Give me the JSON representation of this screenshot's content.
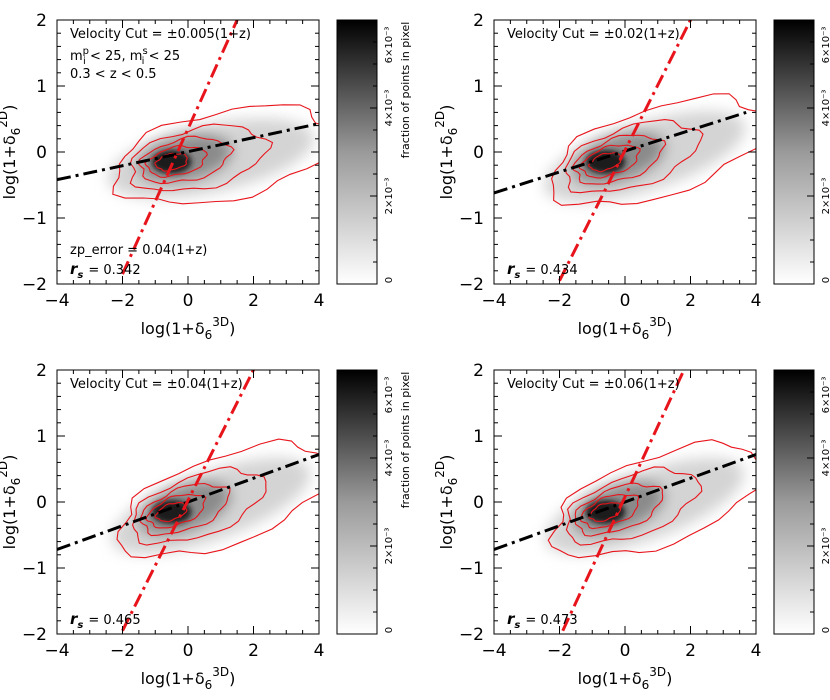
{
  "chart_data": [
    {
      "type": "heatmap",
      "xlabel_main": "log(1+δ",
      "xlabel_sub": "6",
      "xlabel_sup": "3D",
      "xlabel_close": ")",
      "ylabel_main": "log(1+δ",
      "ylabel_sub": "6",
      "ylabel_sup": "2D",
      "ylabel_close": ")",
      "xlim": [
        -4,
        4
      ],
      "ylim": [
        -2,
        2
      ],
      "xticks": [
        "−4",
        "−2",
        "0",
        "2",
        "4"
      ],
      "yticks": [
        "−2",
        "−1",
        "0",
        "1",
        "2"
      ],
      "annotations": [
        {
          "text": "Velocity Cut = ±0.005(1+z)",
          "place": "top-left-1"
        },
        {
          "text": "m",
          "sup": "p",
          "sub": "i",
          "text2": " < 25, m",
          "sup2": "s",
          "sub2": "i",
          "text3": " < 25",
          "place": "top-left-2",
          "kind": "mag"
        },
        {
          "text": "0.3 < z < 0.5",
          "place": "top-left-3"
        },
        {
          "text": "zp_error = 0.04(1+z)",
          "place": "bottom-left-2"
        }
      ],
      "rs_label": "r",
      "rs_sub": "s",
      "rs_value": "= 0.342",
      "fit_black": [
        [
          -4,
          -0.42
        ],
        [
          4,
          0.43
        ]
      ],
      "fit_red": [
        [
          -2.0,
          -1.85
        ],
        [
          1.5,
          2.0
        ]
      ],
      "density_peak": [
        -0.5,
        -0.15
      ],
      "colorbar": {
        "label": "fraction of points in pixel",
        "ticks": [
          "0",
          "2×10⁻³",
          "4×10⁻³",
          "6×10⁻³"
        ],
        "range": [
          0,
          0.006
        ]
      }
    },
    {
      "type": "heatmap",
      "xlabel_main": "log(1+δ",
      "xlabel_sub": "6",
      "xlabel_sup": "3D",
      "xlabel_close": ")",
      "ylabel_main": "log(1+δ",
      "ylabel_sub": "6",
      "ylabel_sup": "2D",
      "ylabel_close": ")",
      "xlim": [
        -4,
        4
      ],
      "ylim": [
        -2,
        2
      ],
      "xticks": [
        "−4",
        "−2",
        "0",
        "2",
        "4"
      ],
      "yticks": [
        "−2",
        "−1",
        "0",
        "1",
        "2"
      ],
      "annotations": [
        {
          "text": "Velocity Cut = ±0.02(1+z)",
          "place": "top-left-1"
        }
      ],
      "rs_label": "r",
      "rs_sub": "s",
      "rs_value": "= 0.434",
      "fit_black": [
        [
          -4,
          -0.62
        ],
        [
          3.7,
          0.6
        ]
      ],
      "fit_red": [
        [
          -2.0,
          -1.95
        ],
        [
          2.0,
          2.0
        ]
      ],
      "density_peak": [
        -0.6,
        -0.15
      ],
      "colorbar": {
        "label": "fraction of points in pixel",
        "ticks": [
          "0",
          "2×10⁻³",
          "4×10⁻³",
          "6×10⁻³"
        ],
        "range": [
          0,
          0.006
        ]
      }
    },
    {
      "type": "heatmap",
      "xlabel_main": "log(1+δ",
      "xlabel_sub": "6",
      "xlabel_sup": "3D",
      "xlabel_close": ")",
      "ylabel_main": "log(1+δ",
      "ylabel_sub": "6",
      "ylabel_sup": "2D",
      "ylabel_close": ")",
      "xlim": [
        -4,
        4
      ],
      "ylim": [
        -2,
        2
      ],
      "xticks": [
        "−4",
        "−2",
        "0",
        "2",
        "4"
      ],
      "yticks": [
        "−2",
        "−1",
        "0",
        "1",
        "2"
      ],
      "annotations": [
        {
          "text": "Velocity Cut = ±0.04(1+z)",
          "place": "top-left-1"
        }
      ],
      "rs_label": "r",
      "rs_sub": "s",
      "rs_value": "= 0.465",
      "fit_black": [
        [
          -4,
          -0.72
        ],
        [
          4,
          0.72
        ]
      ],
      "fit_red": [
        [
          -2.0,
          -1.95
        ],
        [
          2.0,
          2.0
        ]
      ],
      "density_peak": [
        -0.5,
        -0.15
      ],
      "colorbar": {
        "label": "fraction of points in pixel",
        "ticks": [
          "0",
          "2×10⁻³",
          "4×10⁻³",
          "6×10⁻³"
        ],
        "range": [
          0,
          0.006
        ]
      }
    },
    {
      "type": "heatmap",
      "xlabel_main": "log(1+δ",
      "xlabel_sub": "6",
      "xlabel_sup": "3D",
      "xlabel_close": ")",
      "ylabel_main": "log(1+δ",
      "ylabel_sub": "6",
      "ylabel_sup": "2D",
      "ylabel_close": ")",
      "xlim": [
        -4,
        4
      ],
      "ylim": [
        -2,
        2
      ],
      "xticks": [
        "−4",
        "−2",
        "0",
        "2",
        "4"
      ],
      "yticks": [
        "−2",
        "−1",
        "0",
        "1",
        "2"
      ],
      "annotations": [
        {
          "text": "Velocity Cut = ±0.06(1+z)",
          "place": "top-left-1"
        }
      ],
      "rs_label": "r",
      "rs_sub": "s",
      "rs_value": "= 0.473",
      "fit_black": [
        [
          -4,
          -0.72
        ],
        [
          4,
          0.72
        ]
      ],
      "fit_red": [
        [
          -1.9,
          -1.95
        ],
        [
          1.8,
          2.0
        ]
      ],
      "density_peak": [
        -0.6,
        -0.15
      ],
      "colorbar": {
        "label": "fraction of points in pixel",
        "ticks": [
          "0",
          "2×10⁻³",
          "4×10⁻³",
          "6×10⁻³"
        ],
        "range": [
          0,
          0.006
        ]
      }
    }
  ]
}
